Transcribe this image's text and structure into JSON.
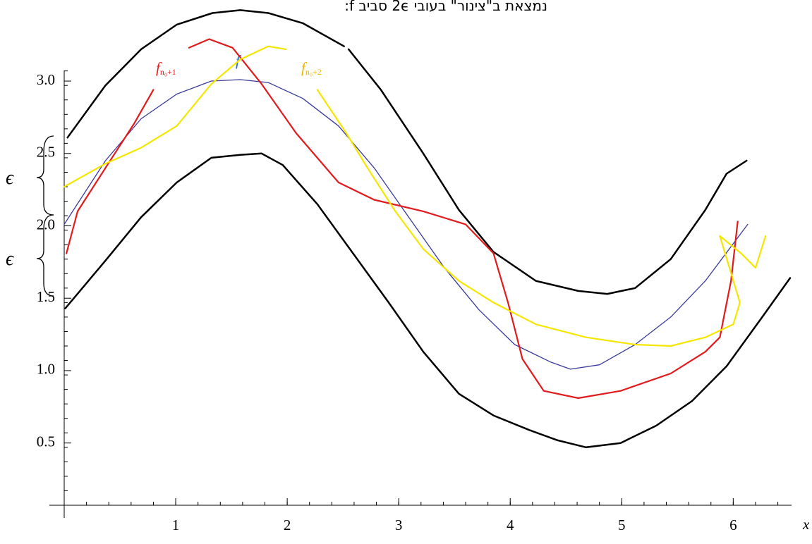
{
  "chart_data": {
    "type": "line",
    "title": "נמצאת ב\"צינור\" בעובי 2ϵ סביב f:",
    "x_label": "x",
    "xlim": [
      0,
      6.7
    ],
    "ylim": [
      0.07,
      3.56
    ],
    "xticks": [
      1,
      2,
      3,
      4,
      5,
      6
    ],
    "yticks": [
      0.5,
      {
        "value": 1,
        "label": "1.0"
      },
      1.5,
      {
        "value": 2,
        "label": "2.0"
      },
      2.5,
      {
        "value": 3,
        "label": "3.0"
      }
    ],
    "minor_tick_step": {
      "x": 0.2,
      "y": 0.1
    },
    "grid": false,
    "annotations": [
      {
        "text": "f",
        "subscript": "n₀+1",
        "color": "#e31a1c"
      },
      {
        "text": "f",
        "color": "#1f6fd6"
      },
      {
        "text": "f",
        "subscript": "n₀+2",
        "color": "#f0b400"
      },
      {
        "text": "ϵ"
      },
      {
        "text": "ϵ"
      }
    ],
    "series": [
      {
        "color": "#000000",
        "width": 2.5,
        "x": [
          0.03,
          0.37,
          0.69,
          1.01,
          1.33,
          1.58,
          1.83,
          2.14,
          2.51,
          2.53,
          2.55,
          2.84,
          3.22,
          3.54,
          3.85,
          4.23,
          4.61,
          4.87,
          5.12,
          5.44,
          5.75,
          5.94,
          6.12
        ],
        "values": [
          2.61,
          2.97,
          3.22,
          3.39,
          3.47,
          3.49,
          3.47,
          3.4,
          3.24,
          null,
          3.22,
          2.94,
          2.5,
          2.11,
          1.82,
          1.62,
          1.55,
          1.53,
          1.57,
          1.77,
          2.11,
          2.36,
          2.45
        ]
      },
      {
        "color": "#000000",
        "width": 2.5,
        "x": [
          0.01,
          0.37,
          0.69,
          1.01,
          1.32,
          1.58,
          1.77,
          1.96,
          2.27,
          2.59,
          2.91,
          3.22,
          3.54,
          3.85,
          4.17,
          4.42,
          4.68,
          4.99,
          5.31,
          5.63,
          5.94,
          6.26,
          6.51
        ],
        "values": [
          1.43,
          1.76,
          2.06,
          2.3,
          2.47,
          2.49,
          2.5,
          2.42,
          2.15,
          1.81,
          1.47,
          1.13,
          0.84,
          0.69,
          0.59,
          0.52,
          0.47,
          0.5,
          0.62,
          0.79,
          1.03,
          1.37,
          1.64
        ]
      },
      {
        "color": "#3a3a9a",
        "width": 1.3,
        "x": [
          0,
          0.37,
          0.69,
          1.01,
          1.32,
          1.58,
          1.83,
          2.14,
          2.46,
          2.78,
          3.09,
          3.41,
          3.72,
          4.04,
          4.36,
          4.54,
          4.8,
          5.12,
          5.44,
          5.75,
          6.13
        ],
        "values": [
          2.01,
          2.45,
          2.74,
          2.91,
          3.0,
          3.01,
          2.99,
          2.88,
          2.69,
          2.4,
          2.06,
          1.71,
          1.42,
          1.18,
          1.06,
          1.01,
          1.04,
          1.18,
          1.37,
          1.62,
          2.01
        ]
      },
      {
        "color": "#e31a1c",
        "width": 2.2,
        "x": [
          0.02,
          0.12,
          0.37,
          0.63,
          0.8,
          0.95,
          1.12,
          1.3,
          1.51,
          1.77,
          2.08,
          2.46,
          2.78,
          3.22,
          3.6,
          3.85,
          3.98,
          4.11,
          4.3,
          4.61,
          4.99,
          5.44,
          5.75,
          5.88,
          5.98,
          6.04
        ],
        "values": [
          1.81,
          2.1,
          2.4,
          2.71,
          2.94,
          null,
          3.23,
          3.29,
          3.23,
          2.98,
          2.64,
          2.3,
          2.18,
          2.1,
          2.01,
          1.81,
          1.47,
          1.08,
          0.86,
          0.81,
          0.86,
          0.98,
          1.13,
          1.23,
          1.62,
          2.03
        ]
      },
      {
        "color": "#f5e600",
        "width": 2.2,
        "x": [
          0,
          0.37,
          0.69,
          1.01,
          1.32,
          1.58,
          1.83,
          1.99,
          2.1,
          2.27,
          2.53,
          2.72,
          2.97,
          3.22,
          3.54,
          3.85,
          4.23,
          4.68,
          5.12,
          5.44,
          5.75,
          6.0,
          6.06,
          5.88,
          6.07,
          6.2,
          6.29
        ],
        "values": [
          2.27,
          2.43,
          2.54,
          2.69,
          2.98,
          3.15,
          3.24,
          3.22,
          null,
          2.94,
          2.64,
          2.4,
          2.1,
          1.84,
          1.62,
          1.47,
          1.32,
          1.23,
          1.18,
          1.17,
          1.23,
          1.32,
          1.47,
          1.93,
          1.81,
          1.71,
          1.93
        ]
      }
    ]
  }
}
